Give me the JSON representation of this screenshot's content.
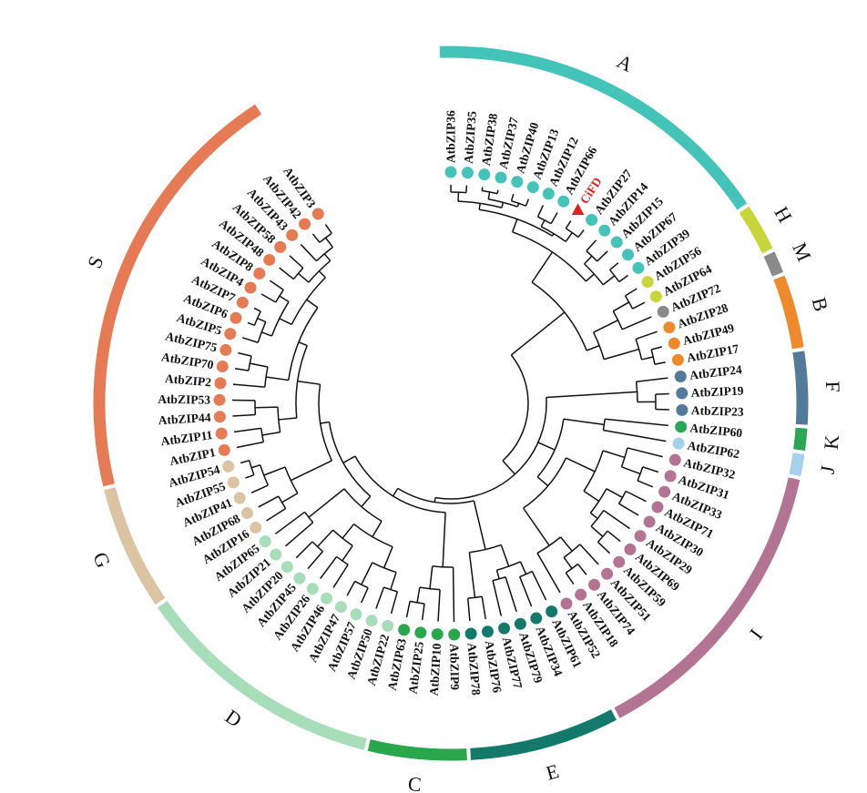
{
  "tree": {
    "leaves": [
      {
        "id": "AtbZIP36",
        "group": "A"
      },
      {
        "id": "AtbZIP35",
        "group": "A"
      },
      {
        "id": "AtbZIP38",
        "group": "A"
      },
      {
        "id": "AtbZIP37",
        "group": "A"
      },
      {
        "id": "AtbZIP40",
        "group": "A"
      },
      {
        "id": "AtbZIP13",
        "group": "A"
      },
      {
        "id": "AtbZIP12",
        "group": "A"
      },
      {
        "id": "AtbZIP66",
        "group": "A"
      },
      {
        "id": "CiFD",
        "group": "A",
        "highlight": true
      },
      {
        "id": "AtbZIP27",
        "group": "A"
      },
      {
        "id": "AtbZIP14",
        "group": "A"
      },
      {
        "id": "AtbZIP15",
        "group": "A"
      },
      {
        "id": "AtbZIP67",
        "group": "A"
      },
      {
        "id": "AtbZIP39",
        "group": "A"
      },
      {
        "id": "AtbZIP56",
        "group": "H"
      },
      {
        "id": "AtbZIP64",
        "group": "H"
      },
      {
        "id": "AtbZIP72",
        "group": "M"
      },
      {
        "id": "AtbZIP28",
        "group": "B"
      },
      {
        "id": "AtbZIP49",
        "group": "B"
      },
      {
        "id": "AtbZIP17",
        "group": "B"
      },
      {
        "id": "AtbZIP24",
        "group": "F"
      },
      {
        "id": "AtbZIP19",
        "group": "F"
      },
      {
        "id": "AtbZIP23",
        "group": "F"
      },
      {
        "id": "AtbZIP60",
        "group": "K"
      },
      {
        "id": "AtbZIP62",
        "group": "J"
      },
      {
        "id": "AtbZIP32",
        "group": "I"
      },
      {
        "id": "AtbZIP31",
        "group": "I"
      },
      {
        "id": "AtbZIP33",
        "group": "I"
      },
      {
        "id": "AtbZIP71",
        "group": "I"
      },
      {
        "id": "AtbZIP30",
        "group": "I"
      },
      {
        "id": "AtbZIP29",
        "group": "I"
      },
      {
        "id": "AtbZIP69",
        "group": "I"
      },
      {
        "id": "AtbZIP59",
        "group": "I"
      },
      {
        "id": "AtbZIP51",
        "group": "I"
      },
      {
        "id": "AtbZIP74",
        "group": "I"
      },
      {
        "id": "AtbZIP18",
        "group": "I"
      },
      {
        "id": "AtbZIP52",
        "group": "I"
      },
      {
        "id": "AtbZIP61",
        "group": "E"
      },
      {
        "id": "AtbZIP34",
        "group": "E"
      },
      {
        "id": "AtbZIP79",
        "group": "E"
      },
      {
        "id": "AtbZIP77",
        "group": "E"
      },
      {
        "id": "AtbZIP76",
        "group": "E"
      },
      {
        "id": "AtbZIP78",
        "group": "E"
      },
      {
        "id": "AtbZIP9",
        "group": "C"
      },
      {
        "id": "AtbZIP10",
        "group": "C"
      },
      {
        "id": "AtbZIP25",
        "group": "C"
      },
      {
        "id": "AtbZIP63",
        "group": "C"
      },
      {
        "id": "AtbZIP22",
        "group": "D"
      },
      {
        "id": "AtbZIP50",
        "group": "D"
      },
      {
        "id": "AtbZIP57",
        "group": "D"
      },
      {
        "id": "AtbZIP47",
        "group": "D"
      },
      {
        "id": "AtbZIP46",
        "group": "D"
      },
      {
        "id": "AtbZIP26",
        "group": "D"
      },
      {
        "id": "AtbZIP45",
        "group": "D"
      },
      {
        "id": "AtbZIP20",
        "group": "D"
      },
      {
        "id": "AtbZIP21",
        "group": "D"
      },
      {
        "id": "AtbZIP65",
        "group": "D"
      },
      {
        "id": "AtbZIP16",
        "group": "G"
      },
      {
        "id": "AtbZIP68",
        "group": "G"
      },
      {
        "id": "AtbZIP41",
        "group": "G"
      },
      {
        "id": "AtbZIP55",
        "group": "G"
      },
      {
        "id": "AtbZIP54",
        "group": "G"
      },
      {
        "id": "AtbZIP1",
        "group": "S"
      },
      {
        "id": "AtbZIP11",
        "group": "S"
      },
      {
        "id": "AtbZIP44",
        "group": "S"
      },
      {
        "id": "AtbZIP53",
        "group": "S"
      },
      {
        "id": "AtbZIP2",
        "group": "S"
      },
      {
        "id": "AtbZIP70",
        "group": "S"
      },
      {
        "id": "AtbZIP75",
        "group": "S"
      },
      {
        "id": "AtbZIP5",
        "group": "S"
      },
      {
        "id": "AtbZIP6",
        "group": "S"
      },
      {
        "id": "AtbZIP7",
        "group": "S"
      },
      {
        "id": "AtbZIP4",
        "group": "S"
      },
      {
        "id": "AtbZIP8",
        "group": "S"
      },
      {
        "id": "AtbZIP48",
        "group": "S"
      },
      {
        "id": "AtbZIP58",
        "group": "S"
      },
      {
        "id": "AtbZIP43",
        "group": "S"
      },
      {
        "id": "AtbZIP42",
        "group": "S"
      },
      {
        "id": "AtbZIP3",
        "group": "S"
      }
    ],
    "groups": [
      {
        "name": "A",
        "color": "#44c3b8"
      },
      {
        "name": "H",
        "color": "#c9d63b"
      },
      {
        "name": "M",
        "color": "#8a8a8a"
      },
      {
        "name": "B",
        "color": "#ee8a2c"
      },
      {
        "name": "F",
        "color": "#547a9b"
      },
      {
        "name": "K",
        "color": "#2aa655"
      },
      {
        "name": "J",
        "color": "#a6d1ec"
      },
      {
        "name": "I",
        "color": "#b37392"
      },
      {
        "name": "E",
        "color": "#137a6b"
      },
      {
        "name": "C",
        "color": "#2aa64c"
      },
      {
        "name": "D",
        "color": "#a8ddb9"
      },
      {
        "name": "G",
        "color": "#dcc3a4"
      },
      {
        "name": "S",
        "color": "#e57a55"
      }
    ],
    "highlight_color": "#e2211c",
    "branch_color": "#111111",
    "highlight_marker": "triangle-icon"
  }
}
